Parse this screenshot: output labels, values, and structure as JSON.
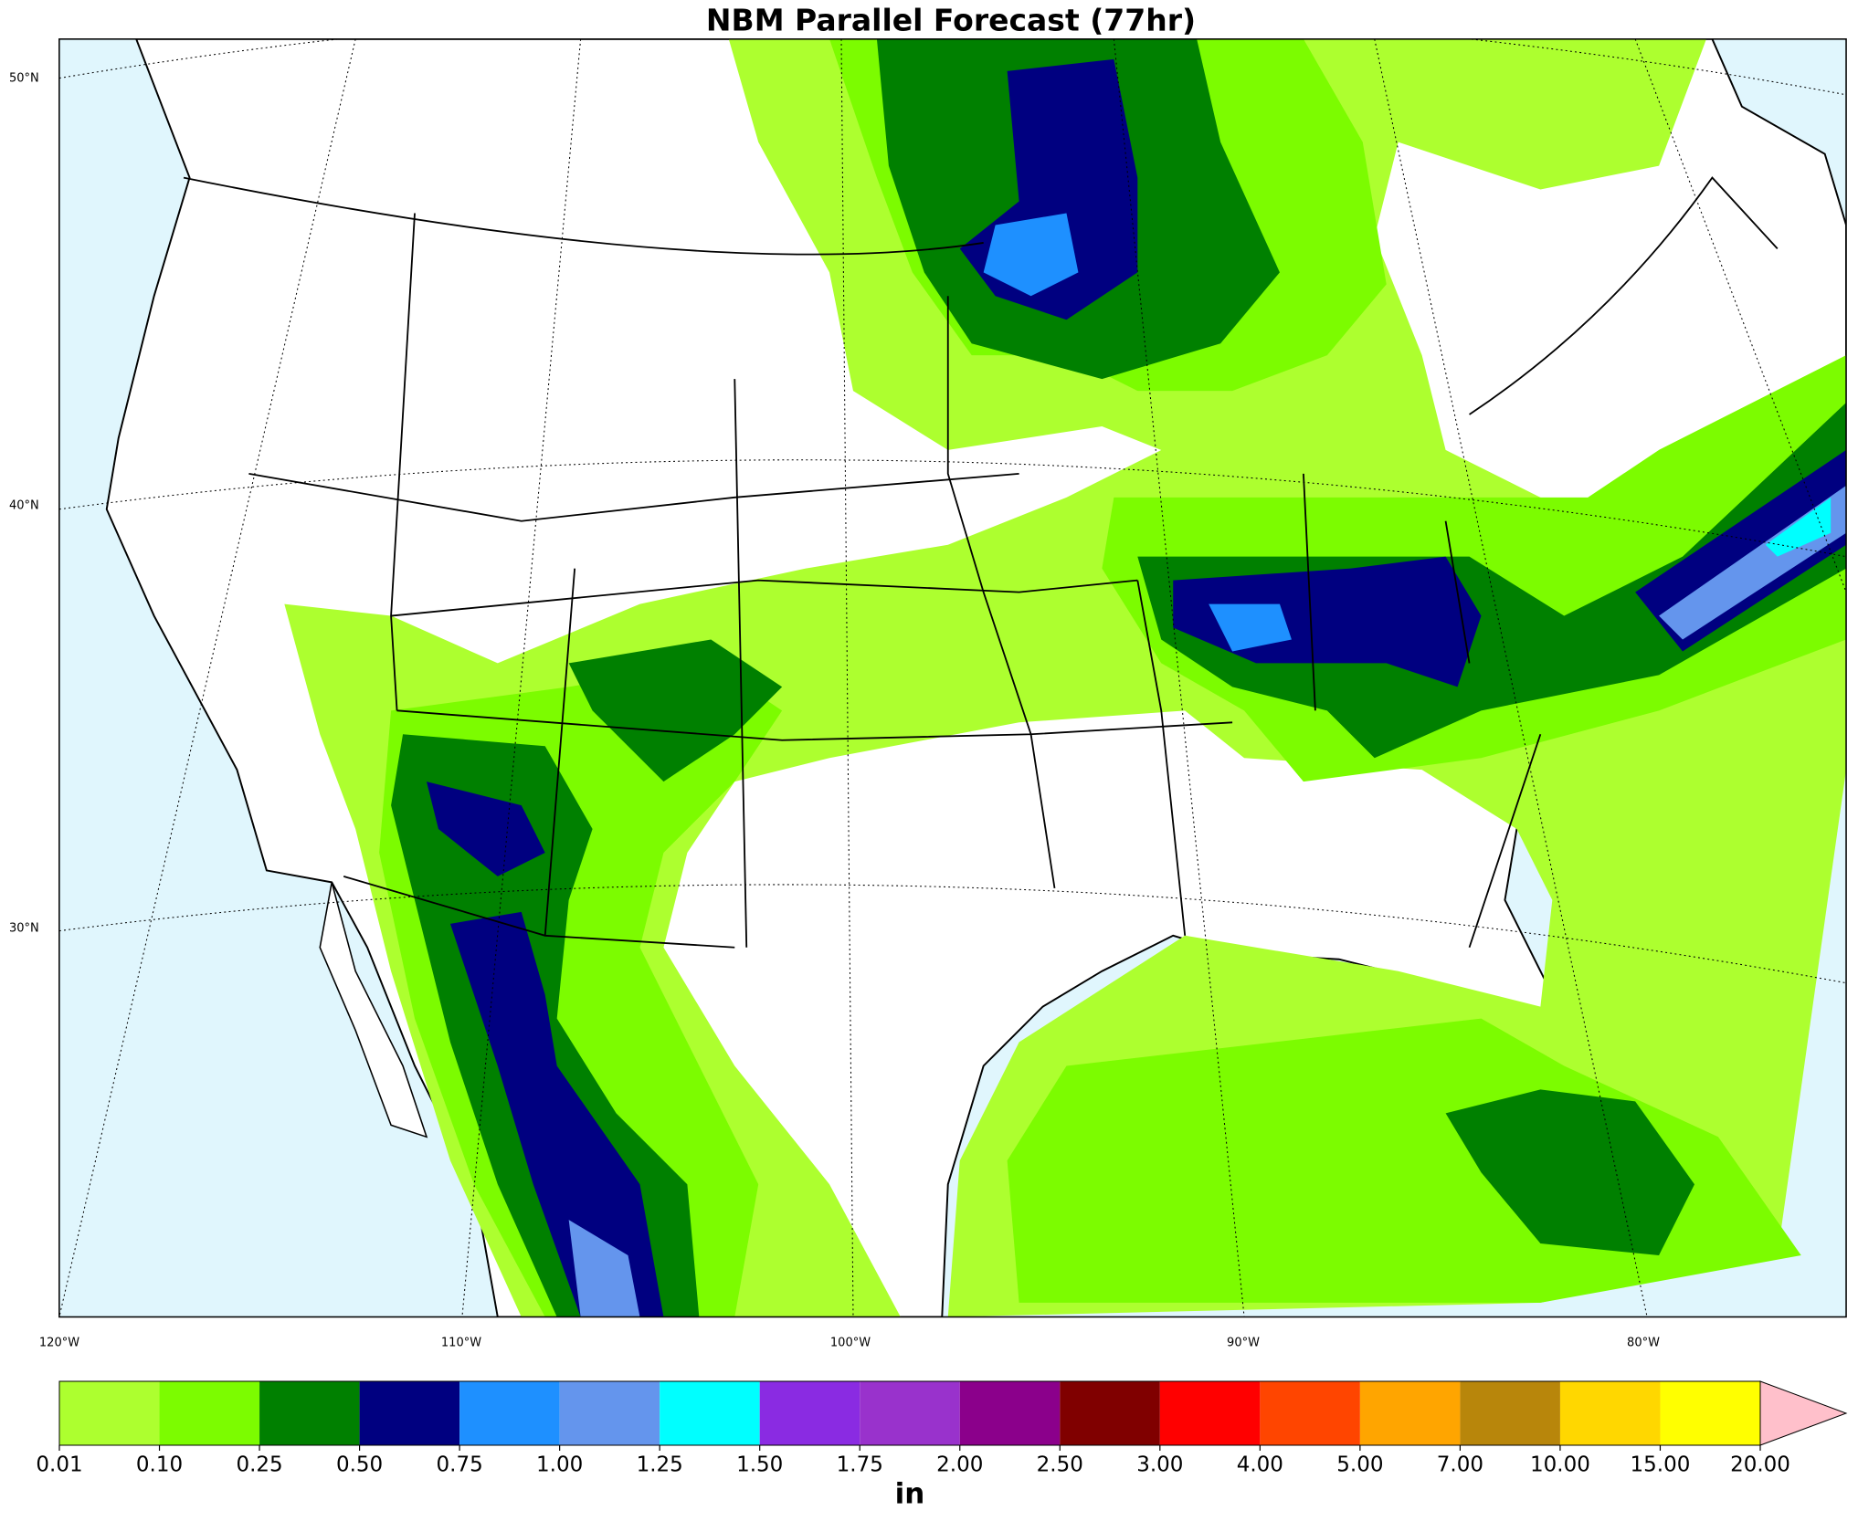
{
  "title": "NBM Parallel Forecast (77hr)",
  "lat_labels": [
    "50°N",
    "40°N",
    "30°N"
  ],
  "lon_labels": [
    "120°W",
    "110°W",
    "100°W",
    "90°W",
    "80°W"
  ],
  "colorbar": {
    "levels": [
      0.01,
      {
        "value": 0.1,
        "label": "0.10"
      },
      0.25,
      {
        "value": 0.5,
        "label": "0.50"
      },
      0.75,
      {
        "value": 1,
        "label": "1.00"
      },
      1.25,
      {
        "value": 1.5,
        "label": "1.50"
      },
      1.75,
      {
        "value": 2,
        "label": "2.00"
      },
      {
        "value": 2.5,
        "label": "2.50"
      },
      {
        "value": 3,
        "label": "3.00"
      },
      {
        "value": 4,
        "label": "4.00"
      },
      {
        "value": 5,
        "label": "5.00"
      },
      {
        "value": 7,
        "label": "7.00"
      },
      {
        "value": 10,
        "label": "10.00"
      },
      {
        "value": 15,
        "label": "15.00"
      },
      {
        "value": 20,
        "label": "20.00"
      }
    ],
    "colors": [
      "#adff2f",
      "#7cfc00",
      "#008000",
      "#000080",
      "#1e90ff",
      "#6495ed",
      "#00ffff",
      "#8a2be2",
      "#9932cc",
      "#8b008b",
      "#800000",
      "#ff0000",
      "#ff4500",
      "#ffa500",
      "#b8860b",
      "#ffd700",
      "#ffff00"
    ],
    "extend_color": "#ffc0cb",
    "unit": "in"
  }
}
